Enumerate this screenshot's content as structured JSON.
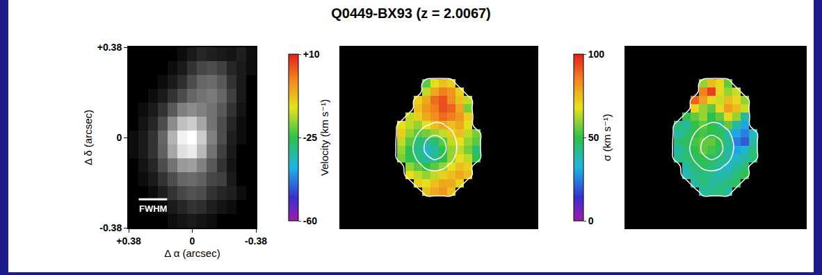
{
  "title": "Q0449-BX93 (z = 2.0067)",
  "chart_data": [
    {
      "type": "image",
      "color": "gray",
      "x_label": "Δ α (arcsec)",
      "y_label": "Δ δ (arcsec)",
      "xlim": [
        0.38,
        -0.38
      ],
      "ylim": [
        -0.38,
        0.38
      ],
      "xticks": [
        {
          "value": 0.38,
          "label": "+0.38"
        },
        0,
        -0.38
      ],
      "yticks": [
        {
          "value": 0.38,
          "label": "+0.38"
        },
        0,
        -0.38
      ],
      "x": [
        0.351,
        0.292,
        0.234,
        0.175,
        0.117,
        0.058,
        0,
        -0.058,
        -0.117,
        -0.175,
        -0.234,
        -0.292,
        -0.351
      ],
      "y": [
        0.351,
        0.292,
        0.234,
        0.175,
        0.117,
        0.058,
        0,
        -0.058,
        -0.117,
        -0.175,
        -0.234,
        -0.292,
        -0.351
      ],
      "z": [
        [
          0,
          0,
          0,
          0,
          0,
          0.05,
          0.1,
          0.15,
          0.12,
          0.1,
          0.08,
          0.12,
          0.05
        ],
        [
          0,
          0,
          0,
          0,
          0.05,
          0.1,
          0.2,
          0.28,
          0.3,
          0.25,
          0.15,
          0.1,
          0.05
        ],
        [
          0,
          0,
          0,
          0.05,
          0.1,
          0.18,
          0.3,
          0.4,
          0.42,
          0.35,
          0.2,
          0.1,
          0
        ],
        [
          0,
          0,
          0.05,
          0.1,
          0.2,
          0.3,
          0.4,
          0.45,
          0.48,
          0.4,
          0.25,
          0.1,
          0
        ],
        [
          0,
          0.05,
          0.1,
          0.2,
          0.35,
          0.5,
          0.55,
          0.5,
          0.45,
          0.35,
          0.2,
          0.08,
          0
        ],
        [
          0,
          0.08,
          0.15,
          0.3,
          0.55,
          0.75,
          0.8,
          0.65,
          0.45,
          0.3,
          0.15,
          0.05,
          0
        ],
        [
          0.05,
          0.1,
          0.2,
          0.4,
          0.7,
          0.95,
          1,
          0.8,
          0.5,
          0.3,
          0.12,
          0.05,
          0
        ],
        [
          0.05,
          0.1,
          0.2,
          0.38,
          0.65,
          0.88,
          0.92,
          0.72,
          0.45,
          0.25,
          0.1,
          0,
          0
        ],
        [
          0,
          0.08,
          0.15,
          0.3,
          0.45,
          0.6,
          0.62,
          0.5,
          0.35,
          0.2,
          0.08,
          0,
          0
        ],
        [
          0,
          0.05,
          0.1,
          0.2,
          0.3,
          0.4,
          0.42,
          0.38,
          0.28,
          0.25,
          0.1,
          0,
          0
        ],
        [
          0,
          0,
          0.05,
          0.12,
          0.2,
          0.28,
          0.32,
          0.3,
          0.2,
          0.15,
          0.12,
          0.05,
          0
        ],
        [
          0,
          0,
          0,
          0.05,
          0.1,
          0.15,
          0.2,
          0.18,
          0.12,
          0.08,
          0.05,
          0,
          0
        ],
        [
          0,
          0,
          0,
          0,
          0.05,
          0.08,
          0.1,
          0.08,
          0.05,
          0,
          0,
          0,
          0
        ]
      ],
      "beam": {
        "label": "FWHM",
        "fwhm": 0.17,
        "x": 0.32,
        "y": -0.26
      }
    },
    {
      "type": "heatmap",
      "color": "rainbow",
      "tick_labels": false,
      "colorbar_title": "Velocity (km s⁻¹)",
      "zlim": [
        -60,
        10
      ],
      "zticks": [
        {
          "value": 10,
          "label": "+10"
        },
        -25,
        -60
      ],
      "z": [
        [
          null,
          null,
          null,
          null,
          null,
          null,
          null,
          null,
          null,
          null,
          null,
          null
        ],
        [
          null,
          null,
          null,
          null,
          -22,
          -12,
          -8,
          -10,
          null,
          null,
          null,
          null
        ],
        [
          null,
          null,
          null,
          null,
          -15,
          -5,
          0,
          -3,
          -10,
          null,
          null,
          null
        ],
        [
          null,
          null,
          null,
          -10,
          -5,
          2,
          5,
          -2,
          -8,
          -15,
          null,
          null
        ],
        [
          null,
          null,
          null,
          -8,
          -3,
          0,
          5,
          3,
          -5,
          -20,
          null,
          null
        ],
        [
          null,
          null,
          -15,
          -10,
          -5,
          -2,
          2,
          0,
          -3,
          -10,
          null,
          null
        ],
        [
          null,
          -12,
          -15,
          -18,
          -12,
          -8,
          -5,
          -8,
          -5,
          -12,
          null,
          null
        ],
        [
          null,
          -10,
          -18,
          -22,
          -20,
          -18,
          -15,
          -10,
          -8,
          -15,
          -20,
          null
        ],
        [
          null,
          -15,
          -22,
          -28,
          -30,
          -28,
          -22,
          -15,
          -12,
          -18,
          -22,
          null
        ],
        [
          null,
          -18,
          -25,
          -30,
          -35,
          -32,
          -25,
          -18,
          -15,
          -20,
          -28,
          null
        ],
        [
          null,
          -20,
          -25,
          -28,
          -32,
          -30,
          -25,
          -18,
          -12,
          -15,
          -25,
          null
        ],
        [
          null,
          null,
          -18,
          -22,
          -25,
          -22,
          -18,
          -12,
          -8,
          -10,
          null,
          null
        ],
        [
          null,
          null,
          -12,
          -15,
          -18,
          -15,
          -10,
          -8,
          -5,
          -8,
          null,
          null
        ],
        [
          null,
          null,
          null,
          -10,
          -12,
          -8,
          -5,
          -5,
          -10,
          null,
          null,
          null
        ],
        [
          null,
          null,
          null,
          null,
          -8,
          -5,
          -3,
          -8,
          null,
          null,
          null,
          null
        ],
        [
          null,
          null,
          null,
          null,
          null,
          null,
          null,
          null,
          null,
          null,
          null,
          null
        ]
      ],
      "contours": {
        "levels": [
          0.05,
          0.4,
          0.75
        ],
        "flux": [
          [
            0,
            0,
            0,
            0,
            0,
            0,
            0,
            0,
            0,
            0,
            0,
            0
          ],
          [
            0,
            0,
            0,
            0,
            0.1,
            0.12,
            0.12,
            0.1,
            0,
            0,
            0,
            0
          ],
          [
            0,
            0,
            0,
            0,
            0.12,
            0.15,
            0.15,
            0.14,
            0.1,
            0,
            0,
            0
          ],
          [
            0,
            0,
            0,
            0.1,
            0.15,
            0.18,
            0.2,
            0.18,
            0.14,
            0.1,
            0,
            0
          ],
          [
            0,
            0,
            0,
            0.12,
            0.18,
            0.2,
            0.22,
            0.2,
            0.16,
            0.1,
            0,
            0
          ],
          [
            0,
            0,
            0.1,
            0.15,
            0.22,
            0.28,
            0.3,
            0.25,
            0.18,
            0.12,
            0,
            0
          ],
          [
            0,
            0.1,
            0.15,
            0.25,
            0.38,
            0.45,
            0.42,
            0.32,
            0.2,
            0.12,
            0,
            0
          ],
          [
            0,
            0.12,
            0.22,
            0.4,
            0.6,
            0.7,
            0.62,
            0.45,
            0.25,
            0.14,
            0.1,
            0
          ],
          [
            0,
            0.14,
            0.28,
            0.5,
            0.78,
            0.92,
            0.8,
            0.55,
            0.3,
            0.15,
            0.1,
            0
          ],
          [
            0,
            0.14,
            0.3,
            0.55,
            0.82,
            1,
            0.85,
            0.58,
            0.3,
            0.15,
            0.1,
            0
          ],
          [
            0,
            0.12,
            0.25,
            0.45,
            0.68,
            0.8,
            0.7,
            0.48,
            0.25,
            0.12,
            0.1,
            0
          ],
          [
            0,
            0,
            0.18,
            0.32,
            0.45,
            0.5,
            0.45,
            0.32,
            0.18,
            0.1,
            0,
            0
          ],
          [
            0,
            0,
            0.12,
            0.2,
            0.28,
            0.3,
            0.28,
            0.2,
            0.12,
            0.1,
            0,
            0
          ],
          [
            0,
            0,
            0,
            0.12,
            0.15,
            0.18,
            0.16,
            0.12,
            0.1,
            0,
            0,
            0
          ],
          [
            0,
            0,
            0,
            0,
            0.1,
            0.1,
            0.1,
            0.1,
            0,
            0,
            0,
            0
          ],
          [
            0,
            0,
            0,
            0,
            0,
            0,
            0,
            0,
            0,
            0,
            0,
            0
          ]
        ]
      }
    },
    {
      "type": "heatmap",
      "color": "rainbow",
      "tick_labels": false,
      "colorbar_title": "σ (km s⁻¹)",
      "zlim": [
        0,
        100
      ],
      "zticks": [
        100,
        50,
        0
      ],
      "z": [
        [
          null,
          null,
          null,
          null,
          null,
          null,
          null,
          null,
          null,
          null,
          null,
          null
        ],
        [
          null,
          null,
          null,
          null,
          60,
          75,
          70,
          55,
          null,
          null,
          null,
          null
        ],
        [
          null,
          null,
          null,
          null,
          85,
          95,
          70,
          60,
          65,
          null,
          null,
          null
        ],
        [
          null,
          null,
          null,
          90,
          80,
          70,
          65,
          75,
          70,
          60,
          null,
          null
        ],
        [
          null,
          null,
          null,
          70,
          60,
          55,
          70,
          80,
          75,
          65,
          null,
          null
        ],
        [
          null,
          null,
          50,
          55,
          60,
          50,
          55,
          70,
          60,
          40,
          null,
          null
        ],
        [
          null,
          45,
          40,
          50,
          55,
          50,
          45,
          55,
          40,
          30,
          null,
          null
        ],
        [
          null,
          40,
          45,
          50,
          52,
          50,
          48,
          40,
          30,
          25,
          35,
          null
        ],
        [
          null,
          45,
          48,
          52,
          55,
          55,
          50,
          42,
          25,
          20,
          40,
          null
        ],
        [
          null,
          40,
          45,
          50,
          55,
          52,
          48,
          40,
          30,
          35,
          45,
          null
        ],
        [
          null,
          42,
          45,
          48,
          50,
          48,
          45,
          40,
          35,
          40,
          45,
          null
        ],
        [
          null,
          null,
          40,
          45,
          48,
          45,
          40,
          35,
          40,
          45,
          null,
          null
        ],
        [
          null,
          null,
          38,
          42,
          45,
          42,
          38,
          40,
          45,
          50,
          null,
          null
        ],
        [
          null,
          null,
          null,
          40,
          45,
          40,
          42,
          45,
          48,
          null,
          null,
          null
        ],
        [
          null,
          null,
          null,
          null,
          40,
          42,
          45,
          40,
          null,
          null,
          null,
          null
        ],
        [
          null,
          null,
          null,
          null,
          null,
          null,
          null,
          null,
          null,
          null,
          null,
          null
        ]
      ],
      "contours": {
        "levels": [
          0.05,
          0.4,
          0.75
        ],
        "flux": [
          [
            0,
            0,
            0,
            0,
            0,
            0,
            0,
            0,
            0,
            0,
            0,
            0
          ],
          [
            0,
            0,
            0,
            0,
            0.1,
            0.12,
            0.12,
            0.1,
            0,
            0,
            0,
            0
          ],
          [
            0,
            0,
            0,
            0,
            0.12,
            0.15,
            0.15,
            0.14,
            0.1,
            0,
            0,
            0
          ],
          [
            0,
            0,
            0,
            0.1,
            0.15,
            0.18,
            0.2,
            0.18,
            0.14,
            0.1,
            0,
            0
          ],
          [
            0,
            0,
            0,
            0.12,
            0.18,
            0.2,
            0.22,
            0.2,
            0.16,
            0.1,
            0,
            0
          ],
          [
            0,
            0,
            0.1,
            0.15,
            0.22,
            0.28,
            0.3,
            0.25,
            0.18,
            0.12,
            0,
            0
          ],
          [
            0,
            0.1,
            0.15,
            0.25,
            0.38,
            0.45,
            0.42,
            0.32,
            0.2,
            0.12,
            0,
            0
          ],
          [
            0,
            0.12,
            0.22,
            0.4,
            0.6,
            0.7,
            0.62,
            0.45,
            0.25,
            0.14,
            0.1,
            0
          ],
          [
            0,
            0.14,
            0.28,
            0.5,
            0.78,
            0.92,
            0.8,
            0.55,
            0.3,
            0.15,
            0.1,
            0
          ],
          [
            0,
            0.14,
            0.3,
            0.55,
            0.82,
            1,
            0.85,
            0.58,
            0.3,
            0.15,
            0.1,
            0
          ],
          [
            0,
            0.12,
            0.25,
            0.45,
            0.68,
            0.8,
            0.7,
            0.48,
            0.25,
            0.12,
            0.1,
            0
          ],
          [
            0,
            0,
            0.18,
            0.32,
            0.45,
            0.5,
            0.45,
            0.32,
            0.18,
            0.1,
            0,
            0
          ],
          [
            0,
            0,
            0.12,
            0.2,
            0.28,
            0.3,
            0.28,
            0.2,
            0.12,
            0.1,
            0,
            0
          ],
          [
            0,
            0,
            0,
            0.12,
            0.15,
            0.18,
            0.16,
            0.12,
            0.1,
            0,
            0,
            0
          ],
          [
            0,
            0,
            0,
            0,
            0.1,
            0.1,
            0.1,
            0.1,
            0,
            0,
            0,
            0
          ],
          [
            0,
            0,
            0,
            0,
            0,
            0,
            0,
            0,
            0,
            0,
            0,
            0
          ]
        ]
      }
    }
  ]
}
